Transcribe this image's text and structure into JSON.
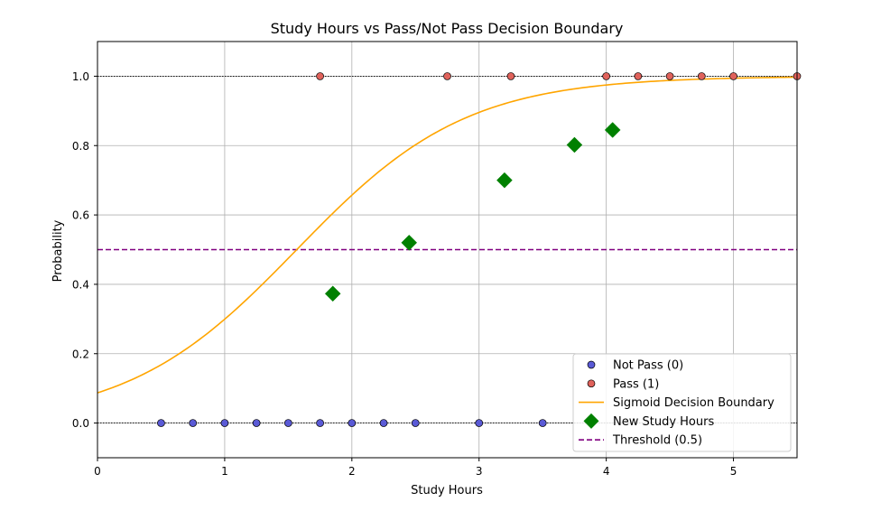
{
  "chart_data": {
    "type": "scatter",
    "title": "Study Hours vs Pass/Not Pass Decision Boundary",
    "xlabel": "Study Hours",
    "ylabel": "Probability",
    "xlim": [
      0,
      5.5
    ],
    "ylim": [
      -0.1,
      1.1
    ],
    "xticks": [
      0,
      1,
      2,
      3,
      4,
      5
    ],
    "yticks": [
      0.0,
      0.2,
      0.4,
      0.6,
      0.8,
      1.0
    ],
    "xtick_labels": [
      "0",
      "1",
      "2",
      "3",
      "4",
      "5"
    ],
    "ytick_labels": [
      "0.0",
      "0.2",
      "0.4",
      "0.6",
      "0.8",
      "1.0"
    ],
    "grid": true,
    "legend_position": "bottom-right",
    "series": [
      {
        "name": "Not Pass (0)",
        "kind": "scatter",
        "color": "#5a5ad6",
        "x": [
          0.5,
          0.75,
          1.0,
          1.25,
          1.5,
          1.75,
          2.0,
          2.25,
          2.5,
          3.0,
          3.5
        ],
        "y": [
          0,
          0,
          0,
          0,
          0,
          0,
          0,
          0,
          0,
          0,
          0
        ]
      },
      {
        "name": "Pass (1)",
        "kind": "scatter",
        "color": "#e0625b",
        "x": [
          1.75,
          2.75,
          3.25,
          4.0,
          4.25,
          4.5,
          4.75,
          5.0,
          5.5
        ],
        "y": [
          1,
          1,
          1,
          1,
          1,
          1,
          1,
          1,
          1
        ]
      },
      {
        "name": "Sigmoid Decision Boundary",
        "kind": "line",
        "color": "#ffa500",
        "function": "sigmoid",
        "coef": 1.5,
        "intercept": -2.35
      },
      {
        "name": "New Study Hours",
        "kind": "diamond",
        "color": "#008000",
        "x": [
          1.85,
          2.45,
          3.2,
          3.75,
          4.05
        ],
        "y": [
          0.373,
          0.52,
          0.7,
          0.802,
          0.845
        ]
      },
      {
        "name": "Threshold (0.5)",
        "kind": "hline",
        "color": "#800080",
        "y": 0.5
      }
    ],
    "reference_lines": [
      0,
      1
    ]
  }
}
